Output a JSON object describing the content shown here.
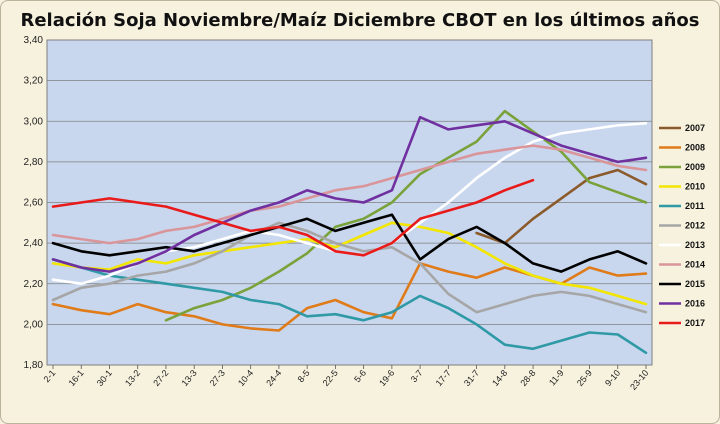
{
  "chart_data": {
    "type": "line",
    "title": "Relación Soja Noviembre/Maíz Diciembre CBOT  en los últimos años",
    "xlabel": "",
    "ylabel": "",
    "ylim": [
      1.8,
      3.4
    ],
    "yticks": [
      "1,80",
      "2,00",
      "2,20",
      "2,40",
      "2,60",
      "2,80",
      "3,00",
      "3,20",
      "3,40"
    ],
    "categories": [
      "2-1",
      "16-1",
      "30-1",
      "13-2",
      "27-2",
      "13-3",
      "27-3",
      "10-4",
      "24-4",
      "8-5",
      "22-5",
      "5-6",
      "19-6",
      "3-7",
      "17-7",
      "31-7",
      "14-8",
      "28-8",
      "11-9",
      "25-9",
      "9-10",
      "23-10"
    ],
    "grid": true,
    "legend_position": "right",
    "plot_background": "#c9d7ee",
    "series": [
      {
        "name": "2007",
        "color": "#8b5a2b",
        "values": [
          null,
          null,
          null,
          null,
          null,
          null,
          null,
          null,
          null,
          null,
          null,
          null,
          null,
          null,
          null,
          2.45,
          2.4,
          2.52,
          2.62,
          2.72,
          2.76,
          2.69
        ]
      },
      {
        "name": "2008",
        "color": "#e07b19",
        "values": [
          2.1,
          2.07,
          2.05,
          2.1,
          2.06,
          2.04,
          2.0,
          1.98,
          1.97,
          2.08,
          2.12,
          2.06,
          2.03,
          2.3,
          2.26,
          2.23,
          2.28,
          2.24,
          2.2,
          2.28,
          2.24,
          2.25
        ]
      },
      {
        "name": "2009",
        "color": "#7aa23a",
        "values": [
          null,
          null,
          null,
          null,
          2.02,
          2.08,
          2.12,
          2.18,
          2.26,
          2.35,
          2.48,
          2.52,
          2.6,
          2.74,
          2.82,
          2.9,
          3.05,
          2.95,
          2.85,
          2.7,
          2.65,
          2.6
        ]
      },
      {
        "name": "2010",
        "color": "#f2e600",
        "values": [
          2.3,
          2.28,
          2.27,
          2.32,
          2.3,
          2.34,
          2.36,
          2.38,
          2.4,
          2.42,
          2.38,
          2.44,
          2.5,
          2.48,
          2.45,
          2.38,
          2.3,
          2.24,
          2.2,
          2.18,
          2.14,
          2.1
        ]
      },
      {
        "name": "2011",
        "color": "#2f9aa6",
        "values": [
          2.32,
          2.28,
          2.24,
          2.22,
          2.2,
          2.18,
          2.16,
          2.12,
          2.1,
          2.04,
          2.05,
          2.02,
          2.06,
          2.14,
          2.08,
          2.0,
          1.9,
          1.88,
          1.92,
          1.96,
          1.95,
          1.86
        ]
      },
      {
        "name": "2012",
        "color": "#a6a6a6",
        "values": [
          2.12,
          2.18,
          2.2,
          2.24,
          2.26,
          2.3,
          2.36,
          2.44,
          2.5,
          2.46,
          2.4,
          2.36,
          2.38,
          2.3,
          2.15,
          2.06,
          2.1,
          2.14,
          2.16,
          2.14,
          2.1,
          2.06
        ]
      },
      {
        "name": "2013",
        "color": "#ffffff",
        "values": [
          2.22,
          2.2,
          2.24,
          2.3,
          2.36,
          2.38,
          2.42,
          2.46,
          2.44,
          2.4,
          2.36,
          2.34,
          2.4,
          2.5,
          2.6,
          2.72,
          2.82,
          2.9,
          2.94,
          2.96,
          2.98,
          2.99
        ]
      },
      {
        "name": "2014",
        "color": "#d9959a",
        "values": [
          2.44,
          2.42,
          2.4,
          2.42,
          2.46,
          2.48,
          2.52,
          2.56,
          2.58,
          2.62,
          2.66,
          2.68,
          2.72,
          2.76,
          2.8,
          2.84,
          2.86,
          2.88,
          2.86,
          2.82,
          2.78,
          2.76
        ]
      },
      {
        "name": "2015",
        "color": "#000000",
        "values": [
          2.4,
          2.36,
          2.34,
          2.36,
          2.38,
          2.36,
          2.4,
          2.44,
          2.48,
          2.52,
          2.46,
          2.5,
          2.54,
          2.32,
          2.42,
          2.48,
          2.4,
          2.3,
          2.26,
          2.32,
          2.36,
          2.3
        ]
      },
      {
        "name": "2016",
        "color": "#7030a0",
        "values": [
          2.32,
          2.28,
          2.26,
          2.3,
          2.36,
          2.44,
          2.5,
          2.56,
          2.6,
          2.66,
          2.62,
          2.6,
          2.66,
          3.02,
          2.96,
          2.98,
          3.0,
          2.94,
          2.88,
          2.84,
          2.8,
          2.82
        ]
      },
      {
        "name": "2017",
        "color": "#e81a1a",
        "values": [
          2.58,
          2.6,
          2.62,
          2.6,
          2.58,
          2.54,
          2.5,
          2.46,
          2.48,
          2.44,
          2.36,
          2.34,
          2.4,
          2.52,
          2.56,
          2.6,
          2.66,
          2.71,
          null,
          null,
          null,
          null
        ]
      }
    ]
  }
}
